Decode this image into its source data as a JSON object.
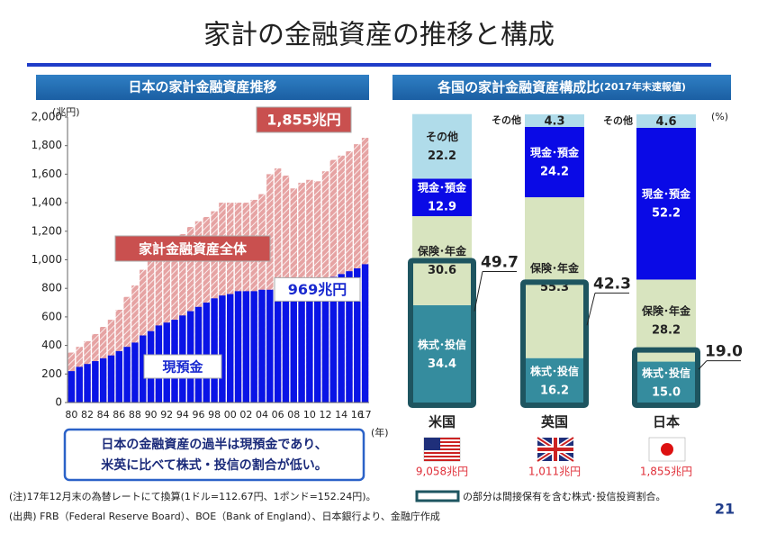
{
  "title": "家計の金融資産の推移と構成",
  "summary": [
    "日本の金融資産の過半は現預金であり、",
    "米英に比べて株式・投信の割合が低い。"
  ],
  "notes": [
    "(注)17年12月末の為替レートにて換算(1ドル=112.67円、1ポンド=152.24円)。",
    "(出典) FRB（Federal Reserve Board）、BOE（Bank of England）、日本銀行より、金融庁作成"
  ],
  "legend_note": "の部分は間接保有を含む株式･投信投資割合。",
  "page_number": "21",
  "chart_data": [
    {
      "type": "bar",
      "title": "日本の家計金融資産推移",
      "y_unit": "(兆円)",
      "x_unit": "(年)",
      "categories": [
        "80",
        null,
        "82",
        null,
        "84",
        null,
        "86",
        null,
        "88",
        null,
        "90",
        null,
        "92",
        null,
        "94",
        null,
        "96",
        null,
        "98",
        null,
        "00",
        null,
        "02",
        null,
        "04",
        null,
        "06",
        null,
        "08",
        null,
        "10",
        null,
        "12",
        null,
        "14",
        null,
        "16",
        "17"
      ],
      "series": [
        {
          "name": "家計金融資産全体",
          "color": "#e6a3a3",
          "values": [
            350,
            390,
            430,
            480,
            530,
            580,
            650,
            740,
            820,
            930,
            1020,
            1060,
            1080,
            1130,
            1180,
            1230,
            1270,
            1300,
            1340,
            1400,
            1400,
            1400,
            1400,
            1420,
            1460,
            1600,
            1640,
            1590,
            1500,
            1540,
            1560,
            1550,
            1620,
            1700,
            1730,
            1760,
            1810,
            1855
          ],
          "value_labels": [
            null,
            null,
            null,
            null,
            null,
            null,
            null,
            null,
            null,
            null,
            null,
            null,
            null,
            null,
            null,
            null,
            null,
            null,
            null,
            null,
            null,
            null,
            null,
            null,
            null,
            null,
            null,
            null,
            null,
            null,
            null,
            null,
            null,
            null,
            null,
            null,
            null,
            "1,855兆円"
          ]
        },
        {
          "name": "現預金",
          "color": "#0a14e6",
          "values": [
            220,
            250,
            270,
            290,
            310,
            330,
            360,
            390,
            420,
            470,
            500,
            540,
            560,
            580,
            610,
            640,
            670,
            700,
            730,
            750,
            760,
            780,
            780,
            780,
            790,
            790,
            800,
            800,
            810,
            820,
            830,
            840,
            860,
            880,
            900,
            920,
            940,
            969
          ],
          "value_labels": [
            null,
            null,
            null,
            null,
            null,
            null,
            null,
            null,
            null,
            null,
            null,
            null,
            null,
            null,
            null,
            null,
            null,
            null,
            null,
            null,
            null,
            null,
            null,
            null,
            null,
            null,
            null,
            null,
            null,
            null,
            null,
            null,
            null,
            null,
            null,
            null,
            null,
            "969兆円"
          ]
        }
      ],
      "ylim": [
        0,
        2000
      ],
      "yticks": [
        0,
        200,
        400,
        600,
        800,
        {
          "value": 1000,
          "label": "1,000"
        },
        {
          "value": 1200,
          "label": "1,200"
        },
        {
          "value": 1400,
          "label": "1,400"
        },
        {
          "value": 1600,
          "label": "1,600"
        },
        {
          "value": 1800,
          "label": "1,800"
        },
        {
          "value": 2000,
          "label": "2,000"
        }
      ]
    },
    {
      "type": "stacked_bar",
      "title": "各国の家計金融資産構成比",
      "title_note": "(2017年末速報値)",
      "y_unit": "(%)",
      "ylim": [
        0,
        100
      ],
      "categories": [
        "米国",
        "英国",
        "日本"
      ],
      "series": [
        {
          "name": "株式･投信",
          "color": "#358c9e",
          "values": [
            34.4,
            16.2,
            15.0
          ],
          "value_labels": [
            "34.4",
            "16.2",
            "15.0"
          ]
        },
        {
          "name": "保険･年金",
          "color": "#d8e4bf",
          "values": [
            30.6,
            55.3,
            28.2
          ]
        },
        {
          "name": "現金･預金",
          "color": "#0a0ae6",
          "values": [
            12.9,
            24.2,
            52.2
          ]
        },
        {
          "name": "その他",
          "color": "#b0dcea",
          "values": [
            22.2,
            4.3,
            4.6
          ]
        }
      ],
      "indirect": {
        "color": "#1e5560",
        "values": [
          49.7,
          42.3,
          19.0
        ],
        "value_labels": [
          "49.7",
          "42.3",
          "19.0"
        ]
      },
      "totals": {
        "values": [
          9058,
          1011,
          1855
        ],
        "labels": [
          "9,058兆円",
          "1,011兆円",
          "1,855兆円"
        ]
      }
    }
  ]
}
